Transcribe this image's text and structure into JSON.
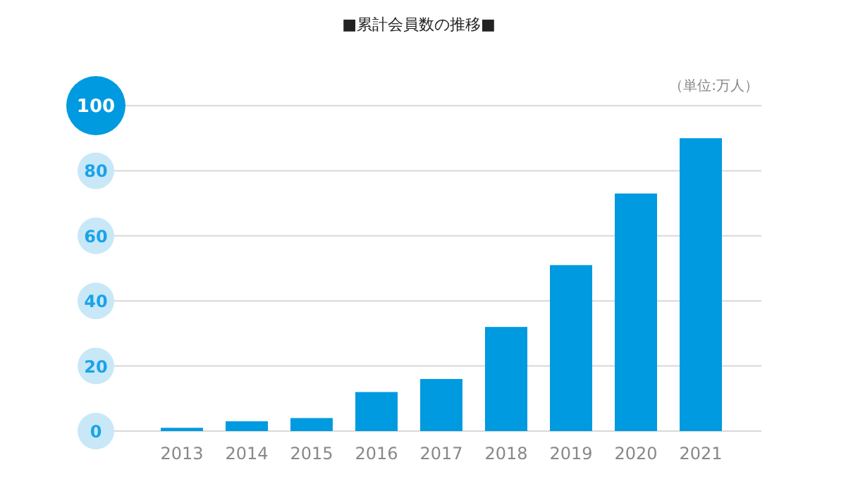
{
  "chart_data": {
    "type": "bar",
    "title": "■累計会員数の推移■",
    "ylabel": "（単位:万人）",
    "categories": [
      "2013",
      "2014",
      "2015",
      "2016",
      "2017",
      "2018",
      "2019",
      "2020",
      "2021"
    ],
    "values": [
      1,
      3,
      4,
      12,
      16,
      32,
      51,
      73,
      90
    ],
    "color": "#009ae0",
    "ylim": [
      0,
      100
    ],
    "yticks": [
      0,
      20,
      40,
      60,
      80,
      100
    ],
    "grid": "y"
  }
}
